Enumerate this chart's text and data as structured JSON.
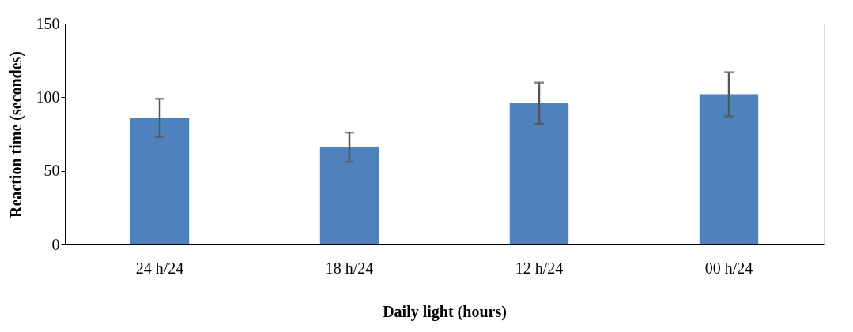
{
  "chart_data": {
    "type": "bar",
    "xlabel": "Daily light (hours)",
    "ylabel": "Reaction time (secondes)",
    "categories": [
      "24 h/24",
      "18 h/24",
      "12 h/24",
      "00 h/24"
    ],
    "values": [
      86,
      66,
      96,
      102
    ],
    "errors": [
      13,
      10,
      14,
      15
    ],
    "color": "#4f81bd",
    "ylim": [
      0,
      150
    ],
    "yticks": [
      0,
      50,
      100,
      150
    ],
    "grid": false
  }
}
